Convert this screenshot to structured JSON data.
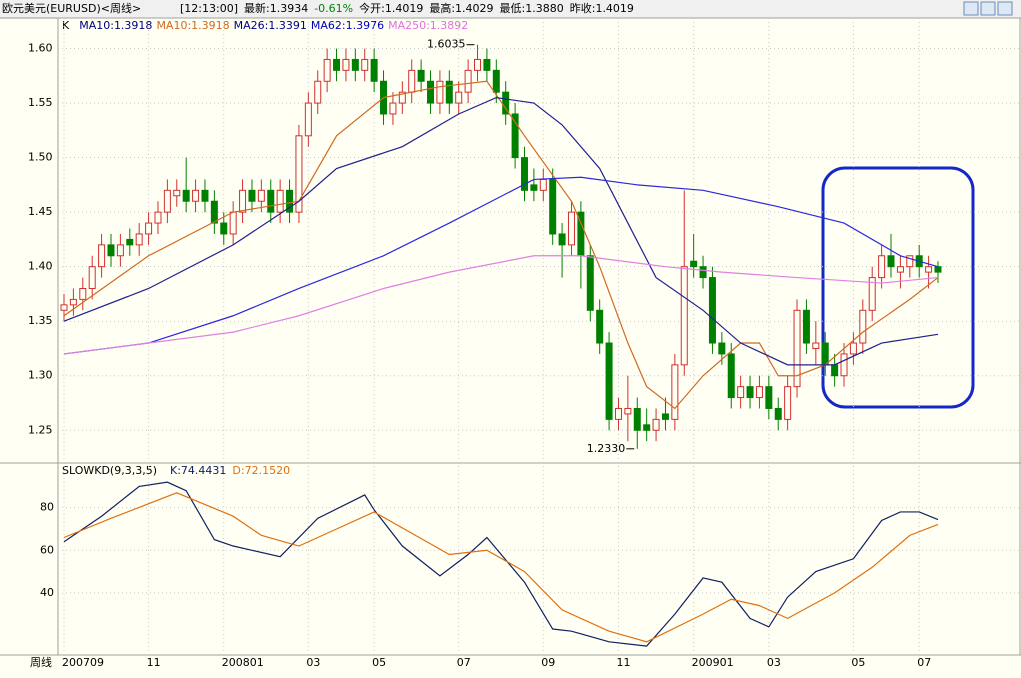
{
  "chart_data": {
    "type": "candlestick",
    "title": "欧元美元(EURUSD)<周线>",
    "header": [
      {
        "label": "[12:13:00]",
        "color": "#000000"
      },
      {
        "label": "最新:1.3934",
        "color": "#000000"
      },
      {
        "label": "-0.61%",
        "color": "#008000"
      },
      {
        "label": "今开:1.4019",
        "color": "#000000"
      },
      {
        "label": "最高:1.4029",
        "color": "#000000"
      },
      {
        "label": "最低:1.3880",
        "color": "#000000"
      },
      {
        "label": "昨收:1.4019",
        "color": "#000000"
      }
    ],
    "legend": [
      {
        "label": "K",
        "color": "#000000"
      },
      {
        "label": "MA10:1.3918",
        "color": "#000080"
      },
      {
        "label": "MA10:1.3918",
        "color": "#d06a20"
      },
      {
        "label": "MA26:1.3391",
        "color": "#000080"
      },
      {
        "label": "MA62:1.3976",
        "color": "#0000c0"
      },
      {
        "label": "MA250:1.3892",
        "color": "#e070e0"
      }
    ],
    "up_color": "#d03030",
    "down_color": "#008000",
    "open": [
      1.36,
      1.365,
      1.37,
      1.38,
      1.4,
      1.42,
      1.41,
      1.425,
      1.42,
      1.43,
      1.44,
      1.45,
      1.465,
      1.47,
      1.46,
      1.47,
      1.46,
      1.44,
      1.43,
      1.45,
      1.47,
      1.46,
      1.47,
      1.45,
      1.47,
      1.45,
      1.52,
      1.55,
      1.57,
      1.59,
      1.58,
      1.59,
      1.58,
      1.59,
      1.57,
      1.54,
      1.55,
      1.56,
      1.58,
      1.57,
      1.55,
      1.57,
      1.55,
      1.56,
      1.58,
      1.59,
      1.58,
      1.56,
      1.54,
      1.5,
      1.475,
      1.47,
      1.48,
      1.43,
      1.42,
      1.45,
      1.41,
      1.36,
      1.33,
      1.26,
      1.265,
      1.27,
      1.255,
      1.25,
      1.265,
      1.26,
      1.31,
      1.405,
      1.4,
      1.39,
      1.33,
      1.32,
      1.28,
      1.29,
      1.28,
      1.29,
      1.27,
      1.26,
      1.29,
      1.36,
      1.325,
      1.33,
      1.31,
      1.3,
      1.32,
      1.33,
      1.36,
      1.39,
      1.41,
      1.395,
      1.4,
      1.41,
      1.395,
      1.4
    ],
    "high": [
      1.375,
      1.38,
      1.39,
      1.41,
      1.43,
      1.43,
      1.43,
      1.435,
      1.44,
      1.45,
      1.46,
      1.48,
      1.48,
      1.5,
      1.48,
      1.48,
      1.47,
      1.45,
      1.46,
      1.48,
      1.48,
      1.48,
      1.48,
      1.48,
      1.48,
      1.53,
      1.56,
      1.58,
      1.6,
      1.6,
      1.6,
      1.6,
      1.6,
      1.6,
      1.58,
      1.56,
      1.57,
      1.59,
      1.59,
      1.58,
      1.58,
      1.58,
      1.57,
      1.59,
      1.6035,
      1.6,
      1.59,
      1.57,
      1.55,
      1.51,
      1.49,
      1.49,
      1.49,
      1.44,
      1.46,
      1.46,
      1.42,
      1.37,
      1.34,
      1.28,
      1.3,
      1.28,
      1.27,
      1.27,
      1.28,
      1.32,
      1.47,
      1.43,
      1.41,
      1.4,
      1.34,
      1.33,
      1.3,
      1.3,
      1.3,
      1.3,
      1.28,
      1.3,
      1.37,
      1.37,
      1.35,
      1.34,
      1.32,
      1.33,
      1.34,
      1.37,
      1.4,
      1.42,
      1.43,
      1.41,
      1.41,
      1.42,
      1.41,
      1.405
    ],
    "low": [
      1.35,
      1.355,
      1.36,
      1.37,
      1.39,
      1.4,
      1.4,
      1.41,
      1.41,
      1.42,
      1.43,
      1.44,
      1.455,
      1.45,
      1.45,
      1.45,
      1.43,
      1.42,
      1.42,
      1.44,
      1.45,
      1.45,
      1.44,
      1.44,
      1.44,
      1.44,
      1.51,
      1.54,
      1.56,
      1.57,
      1.57,
      1.57,
      1.57,
      1.56,
      1.53,
      1.53,
      1.54,
      1.55,
      1.56,
      1.54,
      1.54,
      1.54,
      1.54,
      1.55,
      1.57,
      1.57,
      1.55,
      1.53,
      1.49,
      1.46,
      1.46,
      1.46,
      1.42,
      1.39,
      1.41,
      1.38,
      1.35,
      1.32,
      1.25,
      1.25,
      1.24,
      1.233,
      1.24,
      1.24,
      1.25,
      1.25,
      1.3,
      1.39,
      1.38,
      1.32,
      1.31,
      1.27,
      1.27,
      1.27,
      1.27,
      1.26,
      1.25,
      1.25,
      1.28,
      1.32,
      1.31,
      1.3,
      1.29,
      1.29,
      1.31,
      1.32,
      1.35,
      1.38,
      1.39,
      1.38,
      1.39,
      1.39,
      1.38,
      1.385
    ],
    "close": [
      1.365,
      1.37,
      1.38,
      1.4,
      1.42,
      1.41,
      1.42,
      1.42,
      1.43,
      1.44,
      1.45,
      1.47,
      1.47,
      1.46,
      1.47,
      1.46,
      1.44,
      1.43,
      1.45,
      1.47,
      1.46,
      1.47,
      1.45,
      1.47,
      1.45,
      1.52,
      1.55,
      1.57,
      1.59,
      1.58,
      1.59,
      1.58,
      1.59,
      1.57,
      1.54,
      1.55,
      1.56,
      1.58,
      1.57,
      1.55,
      1.57,
      1.55,
      1.56,
      1.58,
      1.59,
      1.58,
      1.56,
      1.54,
      1.5,
      1.47,
      1.47,
      1.48,
      1.43,
      1.42,
      1.45,
      1.41,
      1.36,
      1.33,
      1.26,
      1.27,
      1.27,
      1.25,
      1.25,
      1.26,
      1.26,
      1.31,
      1.4,
      1.4,
      1.39,
      1.33,
      1.32,
      1.28,
      1.29,
      1.28,
      1.29,
      1.27,
      1.26,
      1.29,
      1.36,
      1.33,
      1.33,
      1.31,
      1.3,
      1.32,
      1.33,
      1.36,
      1.39,
      1.41,
      1.4,
      1.4,
      1.41,
      1.4,
      1.4,
      1.395
    ],
    "series": [
      {
        "name": "MA10",
        "color": "#d06a20",
        "x": [
          0,
          9,
          18,
          25,
          29,
          34,
          40,
          45,
          49,
          54,
          57,
          60,
          62,
          65,
          68,
          72,
          74,
          76,
          78,
          81,
          85,
          90,
          93
        ],
        "values": [
          1.355,
          1.41,
          1.45,
          1.46,
          1.52,
          1.555,
          1.565,
          1.57,
          1.52,
          1.46,
          1.4,
          1.33,
          1.29,
          1.27,
          1.3,
          1.33,
          1.33,
          1.3,
          1.3,
          1.31,
          1.34,
          1.37,
          1.39
        ]
      },
      {
        "name": "MA26",
        "color": "#202090",
        "x": [
          0,
          9,
          18,
          25,
          29,
          36,
          42,
          46,
          50,
          53,
          57,
          60,
          63,
          68,
          72,
          77,
          82,
          87,
          93
        ],
        "values": [
          1.35,
          1.38,
          1.42,
          1.46,
          1.49,
          1.51,
          1.54,
          1.555,
          1.55,
          1.53,
          1.49,
          1.44,
          1.39,
          1.36,
          1.33,
          1.31,
          1.31,
          1.33,
          1.338
        ]
      },
      {
        "name": "MA62",
        "color": "#2828e0",
        "x": [
          0,
          9,
          18,
          25,
          34,
          41,
          50,
          55,
          61,
          68,
          76,
          83,
          89,
          93
        ],
        "values": [
          1.32,
          1.33,
          1.355,
          1.38,
          1.41,
          1.44,
          1.48,
          1.482,
          1.475,
          1.47,
          1.455,
          1.44,
          1.41,
          1.4
        ]
      },
      {
        "name": "MA250",
        "color": "#e080e0",
        "x": [
          0,
          9,
          18,
          25,
          34,
          41,
          50,
          55,
          64,
          70,
          78,
          87,
          93
        ],
        "values": [
          1.32,
          1.33,
          1.34,
          1.355,
          1.38,
          1.395,
          1.41,
          1.41,
          1.4,
          1.395,
          1.39,
          1.385,
          1.39
        ]
      }
    ],
    "ylim": [
      1.22,
      1.628
    ],
    "yticks": [
      {
        "value": 1.6,
        "label": "1.60"
      },
      {
        "value": 1.55,
        "label": "1.55"
      },
      {
        "value": 1.5,
        "label": "1.50"
      },
      {
        "value": 1.45,
        "label": "1.45"
      },
      {
        "value": 1.4,
        "label": "1.40"
      },
      {
        "value": 1.35,
        "label": "1.35"
      },
      {
        "value": 1.3,
        "label": "1.30"
      },
      {
        "value": 1.25,
        "label": "1.25"
      }
    ],
    "xlim": [
      0,
      93
    ],
    "xaxis_label": "周线",
    "xticks": [
      {
        "value": 0,
        "label": "200709"
      },
      {
        "value": 9,
        "label": "11"
      },
      {
        "value": 17,
        "label": "200801"
      },
      {
        "value": 26,
        "label": "03"
      },
      {
        "value": 33,
        "label": "05"
      },
      {
        "value": 42,
        "label": "07"
      },
      {
        "value": 51,
        "label": "09"
      },
      {
        "value": 59,
        "label": "11"
      },
      {
        "value": 67,
        "label": "200901"
      },
      {
        "value": 75,
        "label": "03"
      },
      {
        "value": 84,
        "label": "05"
      },
      {
        "value": 91,
        "label": "07"
      }
    ],
    "annotations": [
      {
        "label": "1.6035",
        "index": 44,
        "value": 1.6035,
        "side": "left"
      },
      {
        "label": "1.2330",
        "index": 61,
        "value": 1.233,
        "side": "left"
      }
    ],
    "indicator": {
      "title": "SLOWKD(9,3,3,5)",
      "legend": [
        {
          "label": "K:74.4431",
          "color": "#102060"
        },
        {
          "label": "D:72.1520",
          "color": "#e07010"
        }
      ],
      "ylim": [
        10.8,
        101
      ],
      "yticks": [
        80,
        60,
        40
      ],
      "series": [
        {
          "name": "K",
          "color": "#102060",
          "x": [
            0,
            4,
            8,
            11,
            13,
            16,
            18,
            20,
            23,
            27,
            32,
            33,
            36,
            40,
            43,
            45,
            49,
            52,
            54,
            58,
            62,
            65,
            68,
            70,
            73,
            75,
            77,
            80,
            84,
            87,
            89,
            91,
            93
          ],
          "values": [
            64,
            76,
            90,
            92,
            88,
            65,
            62,
            60,
            57,
            75,
            86,
            79,
            62,
            48,
            58,
            66,
            45,
            23,
            22,
            17,
            15,
            30,
            47,
            45,
            28,
            24,
            38,
            50,
            56,
            74,
            78,
            78,
            74.4431
          ]
        },
        {
          "name": "D",
          "color": "#e07010",
          "x": [
            0,
            5,
            12,
            18,
            21,
            25,
            29,
            33,
            37,
            41,
            45,
            49,
            53,
            58,
            62,
            68,
            71,
            74,
            77,
            82,
            86,
            90,
            93
          ],
          "values": [
            66,
            75,
            87,
            76,
            67,
            62,
            70,
            78,
            68,
            58,
            60,
            50,
            32,
            22,
            17,
            30,
            37,
            34,
            28,
            40,
            52,
            67,
            72.152
          ]
        }
      ]
    }
  }
}
